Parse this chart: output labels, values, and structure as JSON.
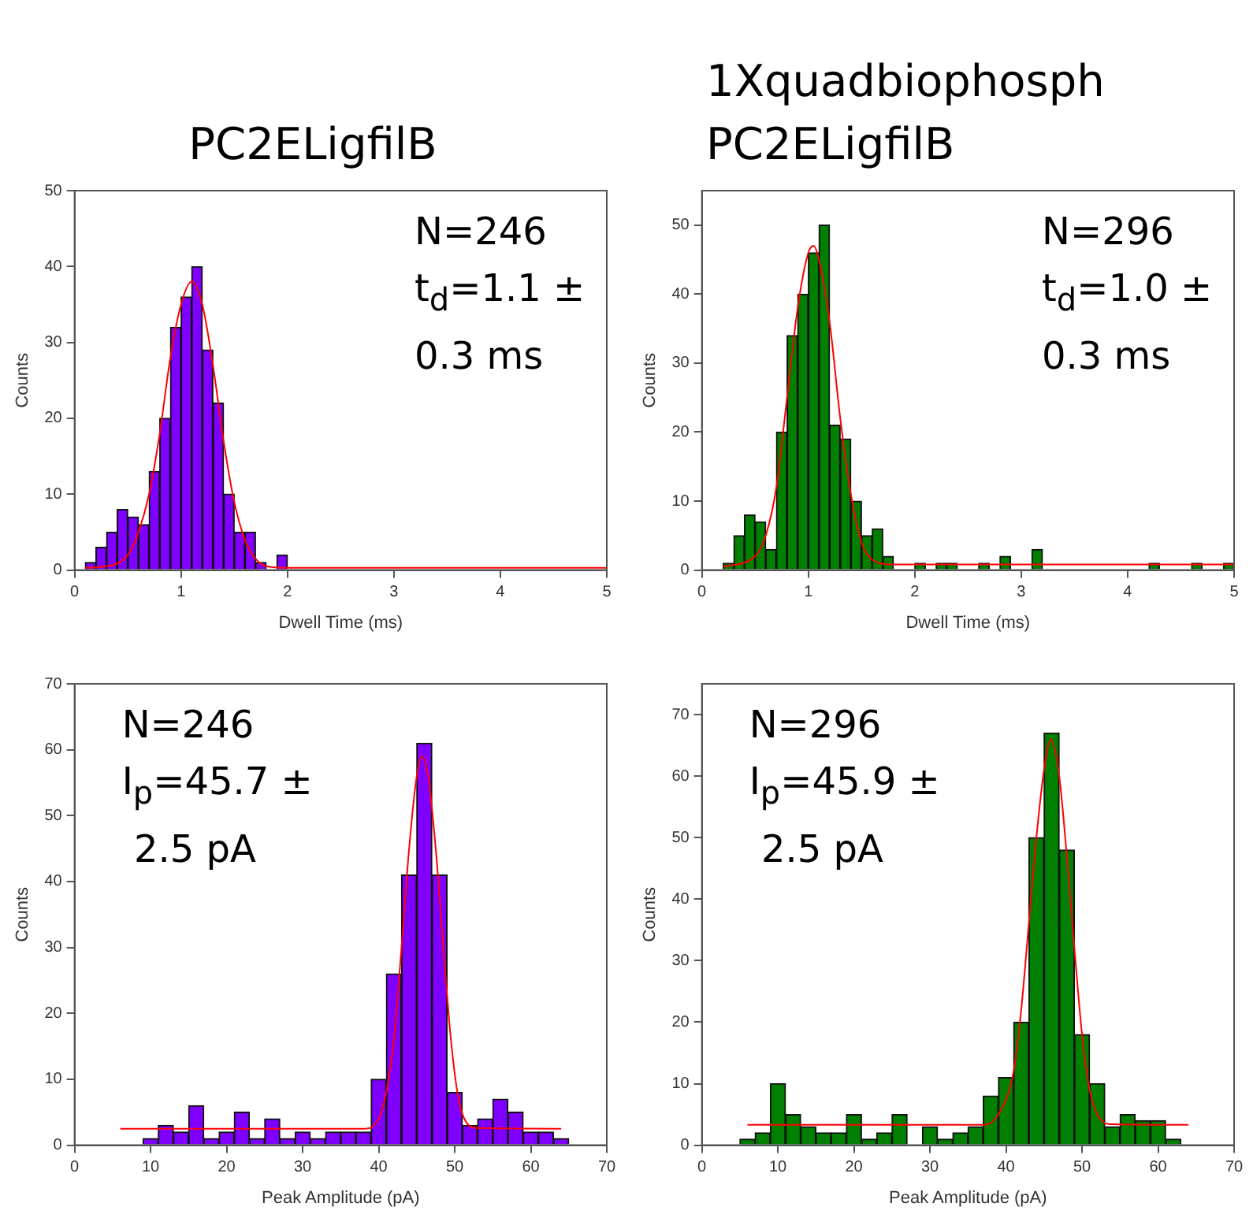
{
  "chart_data": [
    {
      "type": "histogram",
      "title": "PC2ELigfilB",
      "xlabel": "Dwell Time (ms)",
      "ylabel": "Counts",
      "color": "#7f00ff",
      "bins": [
        0.1,
        0.2,
        0.3,
        0.4,
        0.5,
        0.6,
        0.7,
        0.8,
        0.9,
        1.0,
        1.1,
        1.2,
        1.3,
        1.4,
        1.5,
        1.6,
        1.7,
        1.8,
        1.9,
        2.0
      ],
      "values": [
        1,
        3,
        5,
        8,
        7,
        6,
        13,
        20,
        32,
        36,
        40,
        29,
        22,
        10,
        5,
        5,
        1,
        0,
        2
      ],
      "series": [
        {
          "type": "line",
          "color": "#ff0000",
          "x": [
            0.1,
            0.3,
            0.5,
            0.6,
            0.7,
            0.8,
            0.9,
            1.0,
            1.1,
            1.2,
            1.3,
            1.4,
            1.5,
            1.6,
            1.7,
            1.8,
            2.0,
            5.0
          ],
          "values": [
            0.3,
            0.5,
            2,
            5,
            10,
            18,
            28,
            35,
            38,
            35,
            27,
            17,
            9,
            4,
            1.5,
            0.5,
            0.3,
            0.3
          ]
        }
      ],
      "xlim": [
        0,
        5
      ],
      "xticks": [
        0,
        1,
        2,
        3,
        4,
        5
      ],
      "ylim": [
        0,
        50
      ],
      "yticks": [
        0,
        10,
        20,
        30,
        40,
        50
      ],
      "annotations": [
        "N=246",
        "t$_{d}$=1.1 ±",
        "0.3 ms"
      ]
    },
    {
      "type": "histogram",
      "title": "1Xquadbiophosph\nPC2ELigfilB",
      "xlabel": "Dwell Time (ms)",
      "ylabel": "Counts",
      "color": "#007f00",
      "bins": [
        0.2,
        0.3,
        0.4,
        0.5,
        0.6,
        0.7,
        0.8,
        0.9,
        1.0,
        1.1,
        1.2,
        1.3,
        1.4,
        1.5,
        1.6,
        1.7,
        1.8,
        1.9,
        2.0,
        2.1,
        2.2,
        2.3,
        2.4,
        2.5,
        2.6,
        2.7,
        2.8,
        2.9,
        3.0,
        3.1,
        3.2,
        3.3,
        3.4,
        3.5,
        3.6,
        3.7,
        3.8,
        3.9,
        4.0,
        4.1,
        4.2,
        4.3,
        4.4,
        4.5,
        4.6,
        4.7,
        4.8,
        4.9,
        5.0
      ],
      "values": [
        1,
        5,
        8,
        7,
        3,
        20,
        34,
        40,
        46,
        50,
        21,
        19,
        10,
        5,
        6,
        2,
        0,
        0,
        1,
        0,
        1,
        1,
        0,
        0,
        1,
        0,
        2,
        0,
        0,
        3,
        0,
        0,
        0,
        0,
        0,
        0,
        0,
        0,
        0,
        0,
        1,
        0,
        0,
        0,
        1,
        0,
        0,
        1
      ],
      "series": [
        {
          "type": "line",
          "color": "#ff0000",
          "x": [
            0.2,
            0.5,
            0.6,
            0.7,
            0.8,
            0.9,
            1.0,
            1.05,
            1.1,
            1.2,
            1.3,
            1.4,
            1.5,
            1.6,
            1.8,
            5.0
          ],
          "values": [
            0.5,
            2,
            5,
            12,
            25,
            38,
            46,
            47,
            45,
            36,
            22,
            11,
            4,
            1.5,
            0.8,
            0.8
          ]
        }
      ],
      "xlim": [
        0,
        5
      ],
      "xticks": [
        0,
        1,
        2,
        3,
        4,
        5
      ],
      "ylim": [
        0,
        55
      ],
      "yticks": [
        0,
        10,
        20,
        30,
        40,
        50
      ],
      "annotations": [
        "N=296",
        "t$_{d}$=1.0 ±",
        "0.3 ms"
      ]
    },
    {
      "type": "histogram",
      "xlabel": "Peak Amplitude (pA)",
      "ylabel": "Counts",
      "color": "#7f00ff",
      "bins": [
        9,
        11,
        13,
        15,
        17,
        19,
        21,
        23,
        25,
        27,
        29,
        31,
        33,
        35,
        37,
        39,
        41,
        43,
        45,
        47,
        49,
        51,
        53,
        55,
        57,
        59,
        61,
        63,
        65
      ],
      "values": [
        1,
        3,
        2,
        6,
        1,
        2,
        5,
        1,
        4,
        1,
        2,
        1,
        2,
        2,
        2,
        10,
        26,
        41,
        61,
        41,
        8,
        3,
        4,
        7,
        5,
        2,
        2,
        1
      ],
      "series": [
        {
          "type": "line",
          "color": "#ff0000",
          "x": [
            6,
            38,
            40,
            41,
            42,
            43,
            44,
            45,
            45.7,
            46.5,
            47.5,
            48.5,
            49.5,
            50.5,
            51.5,
            53,
            64
          ],
          "values": [
            2.5,
            2.5,
            4,
            8,
            16,
            30,
            45,
            56,
            59,
            56,
            45,
            30,
            16,
            7,
            3.5,
            2.6,
            2.5
          ]
        }
      ],
      "xlim": [
        0,
        70
      ],
      "xticks": [
        0,
        10,
        20,
        30,
        40,
        50,
        60,
        70
      ],
      "ylim": [
        0,
        70
      ],
      "yticks": [
        0,
        10,
        20,
        30,
        40,
        50,
        60,
        70
      ],
      "annotations": [
        "N=246",
        "I$_{p}$=45.7 ±",
        " 2.5 pA"
      ]
    },
    {
      "type": "histogram",
      "xlabel": "Peak Amplitude (pA)",
      "ylabel": "Counts",
      "color": "#007f00",
      "bins": [
        5,
        7,
        9,
        11,
        13,
        15,
        17,
        19,
        21,
        23,
        25,
        27,
        29,
        31,
        33,
        35,
        37,
        39,
        41,
        43,
        45,
        47,
        49,
        51,
        53,
        55,
        57,
        59,
        61,
        63
      ],
      "values": [
        1,
        2,
        10,
        5,
        3,
        2,
        2,
        5,
        1,
        2,
        5,
        0,
        3,
        1,
        2,
        3,
        8,
        11,
        20,
        50,
        67,
        48,
        18,
        10,
        3,
        5,
        4,
        4,
        1
      ],
      "series": [
        {
          "type": "line",
          "color": "#ff0000",
          "x": [
            6,
            37,
            39,
            41,
            42,
            43,
            44,
            45,
            45.9,
            47,
            48,
            49,
            50,
            51,
            52,
            54,
            64
          ],
          "values": [
            3.3,
            3.3,
            5,
            12,
            22,
            36,
            50,
            61,
            66,
            60,
            47,
            32,
            18,
            9,
            5,
            3.4,
            3.3
          ]
        }
      ],
      "xlim": [
        0,
        70
      ],
      "xticks": [
        0,
        10,
        20,
        30,
        40,
        50,
        60,
        70
      ],
      "ylim": [
        0,
        75
      ],
      "yticks": [
        0,
        10,
        20,
        30,
        40,
        50,
        60,
        70
      ],
      "annotations": [
        "N=296",
        "I$_{p}$=45.9 ±",
        " 2.5 pA"
      ]
    }
  ]
}
